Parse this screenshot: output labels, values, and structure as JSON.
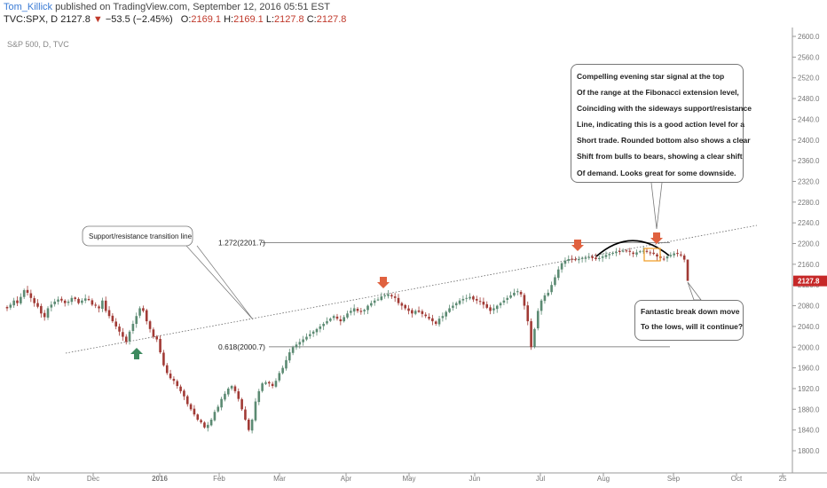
{
  "header": {
    "author": "Tom_Killick",
    "published": "published on TradingView.com, September 12, 2016 05:51 EST",
    "symbol": "TVC:SPX, D",
    "last": "2127.8",
    "change": "−53.5 (−2.45%)",
    "o_label": "O:",
    "o_value": "2169.1",
    "h_label": "H:",
    "h_value": "2169.1",
    "l_label": "L:",
    "l_value": "2127.8",
    "c_label": "C:",
    "c_value": "2127.8"
  },
  "chart_data": {
    "type": "candlestick",
    "title": "S&P 500, D, TVC",
    "ylim": [
      1780,
      2610
    ],
    "y_ticks": [
      "2600.0",
      "2560.0",
      "2520.0",
      "2480.0",
      "2440.0",
      "2400.0",
      "2360.0",
      "2320.0",
      "2280.0",
      "2240.0",
      "2200.0",
      "2160.0",
      "2120.0",
      "2080.0",
      "2040.0",
      "2000.0",
      "1960.0",
      "1920.0",
      "1880.0",
      "1840.0",
      "1800.0"
    ],
    "x_labels": [
      "Nov",
      "Dec",
      "2016",
      "Feb",
      "Mar",
      "Apr",
      "May",
      "Jun",
      "Jul",
      "Aug",
      "Sep",
      "Oct",
      "25"
    ],
    "last_price_label": "2127.8",
    "fib_levels": [
      {
        "label": "1.272(2201.7)",
        "value": 2201.7
      },
      {
        "label": "0.618(2000.7)",
        "value": 2000.7
      }
    ],
    "trendline_label": "Support/resistance transition line",
    "closes": [
      2075,
      2082,
      2090,
      2085,
      2097,
      2110,
      2105,
      2095,
      2085,
      2078,
      2065,
      2058,
      2075,
      2082,
      2088,
      2092,
      2090,
      2085,
      2088,
      2095,
      2093,
      2085,
      2090,
      2094,
      2091,
      2082,
      2080,
      2075,
      2090,
      2070,
      2060,
      2050,
      2040,
      2030,
      2020,
      2010,
      2030,
      2045,
      2060,
      2075,
      2070,
      2050,
      2035,
      2020,
      2015,
      1990,
      1965,
      1950,
      1940,
      1935,
      1925,
      1915,
      1905,
      1890,
      1880,
      1870,
      1860,
      1855,
      1845,
      1850,
      1860,
      1875,
      1885,
      1900,
      1910,
      1920,
      1925,
      1915,
      1900,
      1880,
      1860,
      1840,
      1860,
      1895,
      1915,
      1930,
      1932,
      1930,
      1925,
      1935,
      1950,
      1960,
      1975,
      1990,
      2000,
      2005,
      2010,
      2015,
      2020,
      2025,
      2030,
      2035,
      2040,
      2045,
      2050,
      2055,
      2060,
      2055,
      2050,
      2058,
      2065,
      2070,
      2075,
      2070,
      2068,
      2072,
      2080,
      2085,
      2090,
      2092,
      2098,
      2100,
      2102,
      2098,
      2095,
      2085,
      2080,
      2075,
      2070,
      2065,
      2070,
      2068,
      2064,
      2060,
      2055,
      2050,
      2045,
      2055,
      2060,
      2068,
      2075,
      2080,
      2085,
      2090,
      2093,
      2095,
      2097,
      2092,
      2090,
      2088,
      2082,
      2076,
      2070,
      2075,
      2080,
      2085,
      2090,
      2095,
      2100,
      2105,
      2108,
      2102,
      2080,
      2050,
      2000,
      2035,
      2070,
      2090,
      2100,
      2105,
      2120,
      2135,
      2150,
      2162,
      2167,
      2170,
      2169,
      2168,
      2170,
      2172,
      2173,
      2174,
      2172,
      2170,
      2172,
      2175,
      2178,
      2180,
      2182,
      2184,
      2185,
      2186,
      2185,
      2184,
      2180,
      2183,
      2185,
      2186,
      2184,
      2182,
      2180,
      2175,
      2172,
      2170,
      2175,
      2178,
      2181,
      2180,
      2177,
      2169,
      2128
    ],
    "annotations": {
      "top": [
        "Compelling evening star signal at the top",
        "Of the range at the Fibonacci extension level,",
        "Coinciding with the sideways support/resistance",
        "Line, indicating this is a good action level for a",
        "Short trade. Rounded bottom also shows a clear",
        "Shift from bulls to bears, showing a clear shift",
        "Of demand. Looks great for some downside."
      ],
      "bottom": [
        "Fantastic break down move",
        "To the lows, will it continue?"
      ]
    },
    "colors": {
      "up": "#5b8a72",
      "down": "#a13a35",
      "arrow_down": "#e0613f",
      "arrow_up": "#3d8a5e",
      "last_price_bg": "#c62828"
    }
  }
}
